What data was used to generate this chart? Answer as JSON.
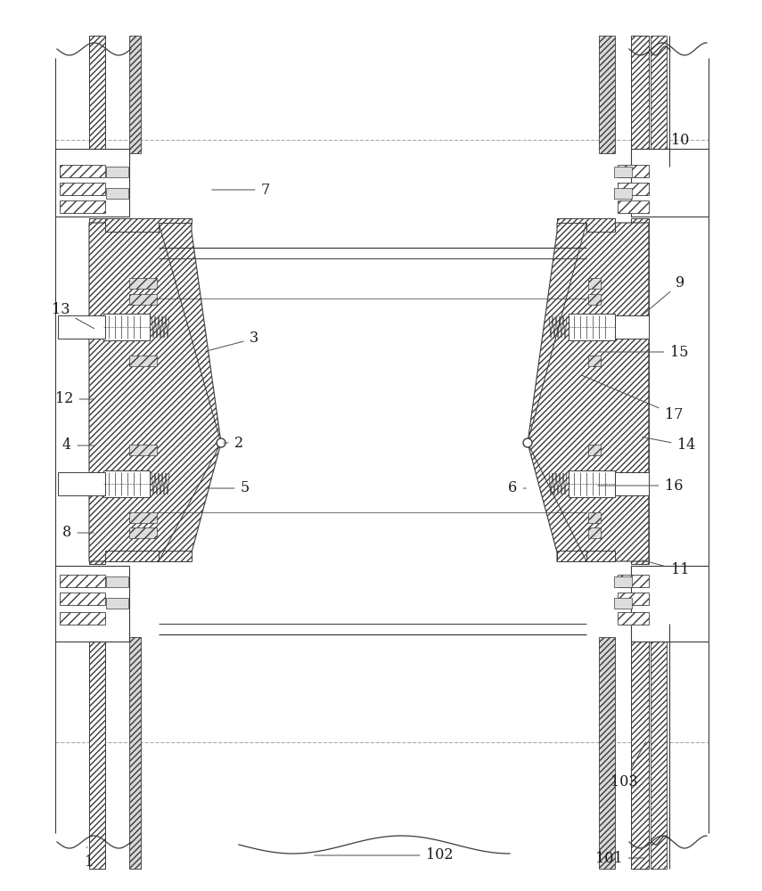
{
  "bg_color": "#ffffff",
  "lc": "#3a3a3a",
  "fig_w": 8.55,
  "fig_h": 10.0,
  "dpi": 100,
  "annotations": [
    [
      "1",
      [
        100,
        967
      ],
      [
        97,
        948
      ]
    ],
    [
      "2",
      [
        268,
        497
      ],
      [
        248,
        497
      ]
    ],
    [
      "3",
      [
        285,
        380
      ],
      [
        228,
        395
      ]
    ],
    [
      "4",
      [
        75,
        500
      ],
      [
        108,
        500
      ]
    ],
    [
      "5",
      [
        275,
        548
      ],
      [
        228,
        548
      ]
    ],
    [
      "6",
      [
        575,
        548
      ],
      [
        593,
        548
      ]
    ],
    [
      "7",
      [
        298,
        213
      ],
      [
        235,
        213
      ]
    ],
    [
      "8",
      [
        75,
        598
      ],
      [
        108,
        598
      ]
    ],
    [
      "9",
      [
        763,
        318
      ],
      [
        718,
        356
      ]
    ],
    [
      "10",
      [
        763,
        158
      ],
      [
        750,
        167
      ]
    ],
    [
      "11",
      [
        763,
        640
      ],
      [
        718,
        628
      ]
    ],
    [
      "12",
      [
        72,
        448
      ],
      [
        108,
        448
      ]
    ],
    [
      "13",
      [
        68,
        348
      ],
      [
        108,
        370
      ]
    ],
    [
      "14",
      [
        770,
        500
      ],
      [
        718,
        490
      ]
    ],
    [
      "15",
      [
        762,
        395
      ],
      [
        668,
        395
      ]
    ],
    [
      "16",
      [
        756,
        545
      ],
      [
        668,
        545
      ]
    ],
    [
      "17",
      [
        756,
        465
      ],
      [
        650,
        420
      ]
    ],
    [
      "101",
      [
        683,
        963
      ],
      [
        726,
        963
      ]
    ],
    [
      "102",
      [
        493,
        960
      ],
      [
        350,
        960
      ]
    ],
    [
      "103",
      [
        700,
        878
      ],
      [
        726,
        830
      ]
    ]
  ]
}
